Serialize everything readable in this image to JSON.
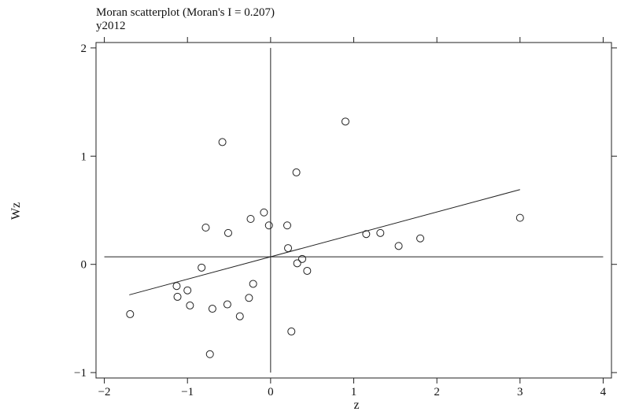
{
  "chart_data": {
    "type": "scatter",
    "title": "Moran scatterplot (Moran's I = 0.207)",
    "subtitle": "y2012",
    "xlabel": "z",
    "ylabel": "Wz",
    "xlim": [
      -2.1,
      4.1
    ],
    "ylim": [
      -1.05,
      2.05
    ],
    "xticks": [
      -2,
      -1,
      0,
      1,
      2,
      3,
      4
    ],
    "yticks": [
      -1,
      0,
      1,
      2
    ],
    "xtick_labels": [
      "−2",
      "−1",
      "0",
      "1",
      "2",
      "3",
      "4"
    ],
    "ytick_labels": [
      "−1",
      "0",
      "1",
      "2"
    ],
    "grid": false,
    "reference_lines": {
      "vertical_x": 0,
      "horizontal_y": 0.07,
      "vertical_range": [
        -1,
        2
      ],
      "horizontal_range": [
        -2,
        4
      ]
    },
    "fit_line": {
      "slope": 0.207,
      "intercept": 0.07,
      "x_range": [
        -1.7,
        3.0
      ]
    },
    "points": [
      {
        "x": -1.69,
        "y": -0.46
      },
      {
        "x": -1.13,
        "y": -0.2
      },
      {
        "x": -1.12,
        "y": -0.3
      },
      {
        "x": -1.0,
        "y": -0.24
      },
      {
        "x": -0.97,
        "y": -0.38
      },
      {
        "x": -0.83,
        "y": -0.03
      },
      {
        "x": -0.78,
        "y": 0.34
      },
      {
        "x": -0.73,
        "y": -0.83
      },
      {
        "x": -0.7,
        "y": -0.41
      },
      {
        "x": -0.58,
        "y": 1.13
      },
      {
        "x": -0.52,
        "y": -0.37
      },
      {
        "x": -0.51,
        "y": 0.29
      },
      {
        "x": -0.37,
        "y": -0.48
      },
      {
        "x": -0.26,
        "y": -0.31
      },
      {
        "x": -0.24,
        "y": 0.42
      },
      {
        "x": -0.21,
        "y": -0.18
      },
      {
        "x": -0.08,
        "y": 0.48
      },
      {
        "x": -0.02,
        "y": 0.36
      },
      {
        "x": 0.2,
        "y": 0.36
      },
      {
        "x": 0.21,
        "y": 0.15
      },
      {
        "x": 0.25,
        "y": -0.62
      },
      {
        "x": 0.31,
        "y": 0.85
      },
      {
        "x": 0.32,
        "y": 0.01
      },
      {
        "x": 0.38,
        "y": 0.05
      },
      {
        "x": 0.44,
        "y": -0.06
      },
      {
        "x": 0.9,
        "y": 1.32
      },
      {
        "x": 1.15,
        "y": 0.28
      },
      {
        "x": 1.32,
        "y": 0.29
      },
      {
        "x": 1.54,
        "y": 0.17
      },
      {
        "x": 1.8,
        "y": 0.24
      },
      {
        "x": 3.0,
        "y": 0.43
      }
    ]
  }
}
